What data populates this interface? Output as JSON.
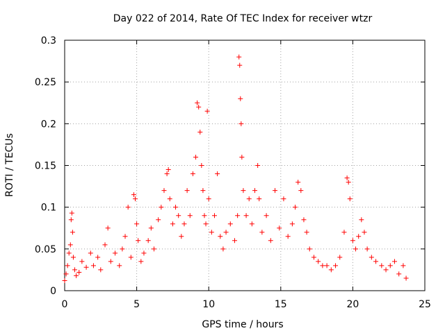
{
  "chart_data": {
    "type": "scatter",
    "title": "Day 022 of 2014, Rate Of TEC Index for receiver wtzr",
    "xlabel": "GPS time / hours",
    "ylabel": "ROTI / TECUs",
    "xlim": [
      0,
      25
    ],
    "ylim": [
      0,
      0.3
    ],
    "xticks": [
      0,
      5,
      10,
      15,
      20,
      25
    ],
    "yticks": [
      0,
      0.05,
      0.1,
      0.15,
      0.2,
      0.25,
      0.3
    ],
    "xtick_labels": [
      "0",
      "5",
      "10",
      "15",
      "20",
      "25"
    ],
    "ytick_labels": [
      "0",
      "0.05",
      "0.1",
      "0.15",
      "0.2",
      "0.25",
      "0.3"
    ],
    "grid": true,
    "marker": "+",
    "color": "#ff0000",
    "series": [
      {
        "name": "ROTI",
        "points": [
          [
            0.0,
            0.012
          ],
          [
            0.1,
            0.02
          ],
          [
            0.2,
            0.03
          ],
          [
            0.3,
            0.045
          ],
          [
            0.4,
            0.055
          ],
          [
            0.45,
            0.085
          ],
          [
            0.5,
            0.093
          ],
          [
            0.55,
            0.07
          ],
          [
            0.6,
            0.04
          ],
          [
            0.7,
            0.025
          ],
          [
            0.8,
            0.018
          ],
          [
            1.0,
            0.022
          ],
          [
            1.2,
            0.035
          ],
          [
            1.5,
            0.028
          ],
          [
            1.8,
            0.045
          ],
          [
            2.0,
            0.03
          ],
          [
            2.3,
            0.04
          ],
          [
            2.5,
            0.025
          ],
          [
            2.8,
            0.055
          ],
          [
            3.0,
            0.075
          ],
          [
            3.2,
            0.035
          ],
          [
            3.5,
            0.045
          ],
          [
            3.8,
            0.03
          ],
          [
            4.0,
            0.05
          ],
          [
            4.2,
            0.065
          ],
          [
            4.4,
            0.1
          ],
          [
            4.6,
            0.04
          ],
          [
            4.8,
            0.115
          ],
          [
            4.9,
            0.11
          ],
          [
            5.0,
            0.08
          ],
          [
            5.1,
            0.06
          ],
          [
            5.3,
            0.035
          ],
          [
            5.5,
            0.045
          ],
          [
            5.8,
            0.06
          ],
          [
            6.0,
            0.075
          ],
          [
            6.2,
            0.05
          ],
          [
            6.5,
            0.085
          ],
          [
            6.7,
            0.1
          ],
          [
            6.9,
            0.12
          ],
          [
            7.1,
            0.14
          ],
          [
            7.2,
            0.145
          ],
          [
            7.3,
            0.11
          ],
          [
            7.5,
            0.08
          ],
          [
            7.7,
            0.1
          ],
          [
            7.9,
            0.09
          ],
          [
            8.1,
            0.065
          ],
          [
            8.3,
            0.08
          ],
          [
            8.5,
            0.12
          ],
          [
            8.7,
            0.09
          ],
          [
            8.9,
            0.14
          ],
          [
            9.1,
            0.16
          ],
          [
            9.2,
            0.225
          ],
          [
            9.3,
            0.22
          ],
          [
            9.4,
            0.19
          ],
          [
            9.5,
            0.15
          ],
          [
            9.6,
            0.12
          ],
          [
            9.7,
            0.09
          ],
          [
            9.8,
            0.08
          ],
          [
            9.9,
            0.215
          ],
          [
            10.0,
            0.11
          ],
          [
            10.2,
            0.07
          ],
          [
            10.4,
            0.09
          ],
          [
            10.6,
            0.14
          ],
          [
            10.8,
            0.065
          ],
          [
            11.0,
            0.05
          ],
          [
            11.2,
            0.07
          ],
          [
            11.5,
            0.08
          ],
          [
            11.8,
            0.06
          ],
          [
            12.0,
            0.09
          ],
          [
            12.1,
            0.28
          ],
          [
            12.15,
            0.27
          ],
          [
            12.2,
            0.23
          ],
          [
            12.25,
            0.2
          ],
          [
            12.3,
            0.16
          ],
          [
            12.4,
            0.12
          ],
          [
            12.6,
            0.09
          ],
          [
            12.8,
            0.11
          ],
          [
            13.0,
            0.08
          ],
          [
            13.2,
            0.12
          ],
          [
            13.4,
            0.15
          ],
          [
            13.5,
            0.11
          ],
          [
            13.7,
            0.07
          ],
          [
            14.0,
            0.09
          ],
          [
            14.3,
            0.06
          ],
          [
            14.6,
            0.12
          ],
          [
            14.9,
            0.075
          ],
          [
            15.2,
            0.11
          ],
          [
            15.5,
            0.065
          ],
          [
            15.8,
            0.08
          ],
          [
            16.0,
            0.1
          ],
          [
            16.2,
            0.13
          ],
          [
            16.4,
            0.12
          ],
          [
            16.6,
            0.085
          ],
          [
            16.8,
            0.07
          ],
          [
            17.0,
            0.05
          ],
          [
            17.3,
            0.04
          ],
          [
            17.6,
            0.035
          ],
          [
            17.9,
            0.03
          ],
          [
            18.2,
            0.03
          ],
          [
            18.5,
            0.025
          ],
          [
            18.8,
            0.03
          ],
          [
            19.1,
            0.04
          ],
          [
            19.4,
            0.07
          ],
          [
            19.6,
            0.135
          ],
          [
            19.7,
            0.13
          ],
          [
            19.8,
            0.11
          ],
          [
            20.0,
            0.06
          ],
          [
            20.2,
            0.05
          ],
          [
            20.4,
            0.065
          ],
          [
            20.6,
            0.085
          ],
          [
            20.8,
            0.07
          ],
          [
            21.0,
            0.05
          ],
          [
            21.3,
            0.04
          ],
          [
            21.6,
            0.035
          ],
          [
            22.0,
            0.03
          ],
          [
            22.3,
            0.025
          ],
          [
            22.6,
            0.03
          ],
          [
            22.9,
            0.035
          ],
          [
            23.2,
            0.02
          ],
          [
            23.5,
            0.03
          ],
          [
            23.7,
            0.015
          ]
        ]
      }
    ]
  }
}
